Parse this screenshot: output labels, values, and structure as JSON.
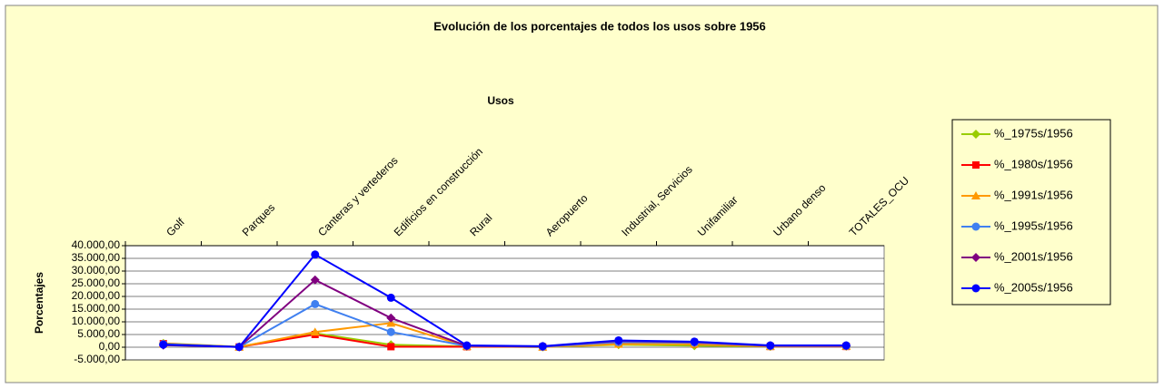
{
  "chart_data": {
    "type": "line",
    "title": "Evolución de los porcentajes de todos los usos sobre 1956",
    "x_label": "Usos",
    "y_label": "Porcentajes",
    "categories": [
      "Golf",
      "Parques",
      "Canteras y vertederos",
      "Edificios en construcción",
      "Rural",
      "Aeropuerto",
      "Industrial, Servicios",
      "Unifamiliar",
      "Urbano denso",
      "TOTALES_OCU"
    ],
    "series": [
      {
        "name": "%_1975s/1956",
        "color": "#99cc00",
        "marker": "diamond",
        "values": [
          1500,
          200,
          5500,
          1000,
          300,
          100,
          1000,
          600,
          300,
          400
        ]
      },
      {
        "name": "%_1980s/1956",
        "color": "#ff0000",
        "marker": "square",
        "values": [
          1400,
          100,
          5000,
          200,
          200,
          100,
          1500,
          1200,
          300,
          300
        ]
      },
      {
        "name": "%_1991s/1956",
        "color": "#ff9900",
        "marker": "triangle",
        "values": [
          1300,
          100,
          6000,
          9500,
          300,
          100,
          1200,
          1300,
          300,
          400
        ]
      },
      {
        "name": "%_1995s/1956",
        "color": "#4080f0",
        "marker": "circle",
        "values": [
          1200,
          100,
          17000,
          6000,
          500,
          200,
          2000,
          1800,
          500,
          500
        ]
      },
      {
        "name": "%_2001s/1956",
        "color": "#800080",
        "marker": "diamond",
        "values": [
          800,
          100,
          26500,
          11500,
          500,
          300,
          2500,
          2000,
          600,
          600
        ]
      },
      {
        "name": "%_2005s/1956",
        "color": "#0000ff",
        "marker": "circle",
        "values": [
          1000,
          100,
          36500,
          19500,
          700,
          400,
          2700,
          2200,
          700,
          700
        ]
      }
    ],
    "ylim": [
      -5000,
      40000
    ],
    "yticks": [
      {
        "value": -5000,
        "label": "-5.000,00"
      },
      {
        "value": 0,
        "label": "0,00"
      },
      {
        "value": 5000,
        "label": "5.000,00"
      },
      {
        "value": 10000,
        "label": "10.000,00"
      },
      {
        "value": 15000,
        "label": "15.000,00"
      },
      {
        "value": 20000,
        "label": "20.000,00"
      },
      {
        "value": 25000,
        "label": "25.000,00"
      },
      {
        "value": 30000,
        "label": "30.000,00"
      },
      {
        "value": 35000,
        "label": "35.000,00"
      },
      {
        "value": 40000,
        "label": "40.000,00"
      }
    ],
    "grid": true,
    "legend": "right"
  }
}
